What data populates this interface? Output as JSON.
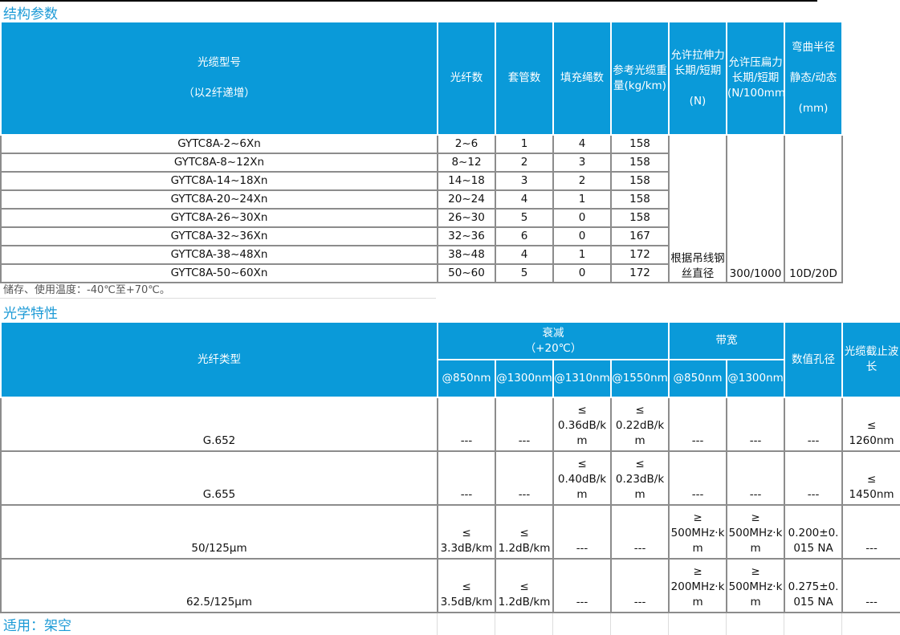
{
  "section1_title": "结构参数",
  "table1": {
    "headers": [
      "光缆型号\n\n（以2纤递增）",
      "光纤数",
      "套管数",
      "填充绳数",
      "参考光缆重量(kg/km)",
      "允许拉伸力\n长期/短期\n\n(N)",
      "允许压扁力\n长期/短期\n(N/100mm)",
      "弯曲半径\n\n静态/动态\n\n(mm)"
    ],
    "rows": [
      [
        "GYTC8A-2~6Xn",
        "2~6",
        "1",
        "4",
        "158"
      ],
      [
        "GYTC8A-8~12Xn",
        "8~12",
        "2",
        "3",
        "158"
      ],
      [
        "GYTC8A-14~18Xn",
        "14~18",
        "3",
        "2",
        "158"
      ],
      [
        "GYTC8A-20~24Xn",
        "20~24",
        "4",
        "1",
        "158"
      ],
      [
        "GYTC8A-26~30Xn",
        "26~30",
        "5",
        "0",
        "158"
      ],
      [
        "GYTC8A-32~36Xn",
        "32~36",
        "6",
        "0",
        "167"
      ],
      [
        "GYTC8A-38~48Xn",
        "38~48",
        "4",
        "1",
        "172"
      ],
      [
        "GYTC8A-50~60Xn",
        "50~60",
        "5",
        "0",
        "172"
      ]
    ],
    "tensile": "根据吊线钢丝直径",
    "crush": "300/1000",
    "bend": "10D/20D"
  },
  "note": "储存、使用温度：-40℃至+70℃。",
  "section2_title": "光学特性",
  "table2": {
    "fiber_type": "光纤类型",
    "attenuation": "衰减\n（+20℃）",
    "bandwidth": "带宽",
    "na": "数值孔径",
    "cutoff": "光缆截止波长",
    "sub": [
      "@850nm",
      "@1300nm",
      "@1310nm",
      "@1550nm",
      "@850nm",
      "@1300nm"
    ],
    "rows": [
      [
        "G.652",
        "---",
        "---",
        "≤\n0.36dB/km",
        "≤\n0.22dB/km",
        "---",
        "---",
        "---",
        "≤\n1260nm"
      ],
      [
        "G.655",
        "---",
        "---",
        "≤\n0.40dB/km",
        "≤\n0.23dB/km",
        "---",
        "---",
        "---",
        "≤\n1450nm"
      ],
      [
        "50/125μm",
        "≤\n3.3dB/km",
        "≤\n1.2dB/km",
        "---",
        "---",
        "≥\n500MHz·km",
        "≥\n500MHz·km",
        "0.200±0.015 NA",
        "---"
      ],
      [
        "62.5/125μm",
        "≤\n3.5dB/km",
        "≤\n1.2dB/km",
        "---",
        "---",
        "≥\n200MHz·km",
        "≥\n500MHz·km",
        "0.275±0.015 NA",
        "---"
      ]
    ]
  },
  "footer": "适用：架空"
}
